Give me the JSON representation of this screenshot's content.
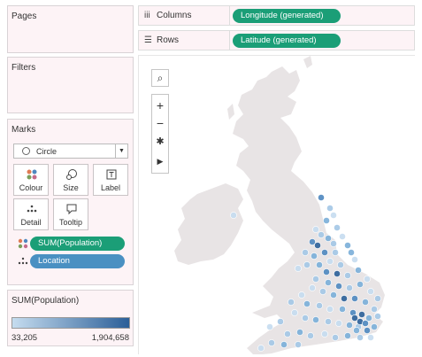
{
  "side": {
    "pages_title": "Pages",
    "filters_title": "Filters",
    "marks_title": "Marks",
    "mark_type": "Circle",
    "cards": [
      {
        "label": "Colour",
        "icon": "colour-icon"
      },
      {
        "label": "Size",
        "icon": "size-icon"
      },
      {
        "label": "Label",
        "icon": "label-icon"
      },
      {
        "label": "Detail",
        "icon": "detail-icon"
      },
      {
        "label": "Tooltip",
        "icon": "tooltip-icon"
      }
    ],
    "pills": [
      {
        "label": "SUM(Population)",
        "color": "#1b9e77"
      },
      {
        "label": "Location",
        "color": "#4a90c2"
      }
    ],
    "legend": {
      "title": "SUM(Population)",
      "min": "33,205",
      "max": "1,904,658",
      "color_low": "#c5dcef",
      "color_high": "#2b5f98"
    }
  },
  "shelves": {
    "columns_label": "Columns",
    "columns_pill": "Longitude (generated)",
    "rows_label": "Rows",
    "rows_pill": "Latitude (generated)",
    "pill_color": "#1b9e77"
  },
  "map": {
    "land_color": "#e8e4e5",
    "point_colors": [
      "#c5dcef",
      "#a3c7e6",
      "#7aaed8",
      "#4e87bf",
      "#2b5f98"
    ],
    "toolbar": [
      "search-icon",
      "zoom-in-icon",
      "zoom-out-icon",
      "pin-reset-icon",
      "expand-icon"
    ]
  }
}
